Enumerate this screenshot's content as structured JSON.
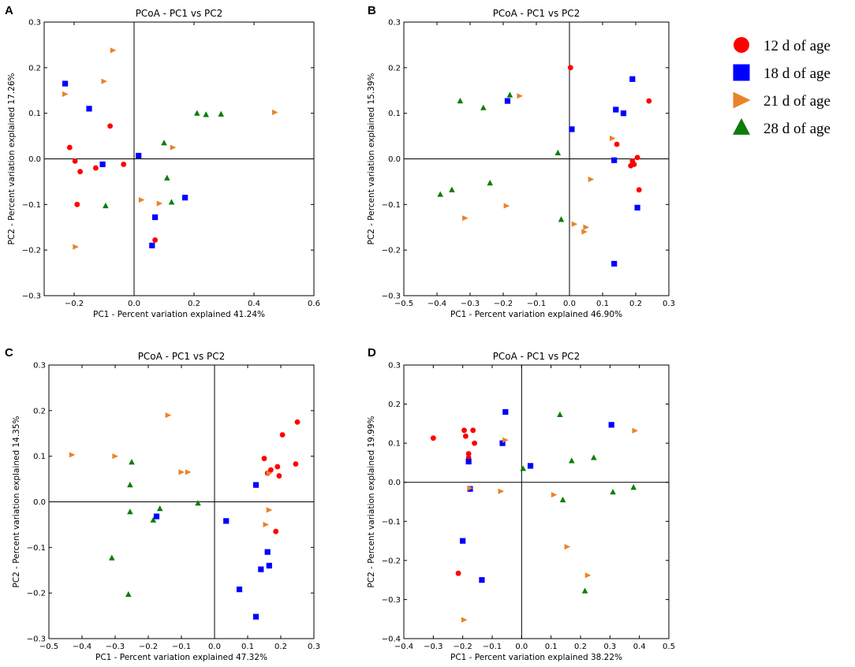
{
  "colors": {
    "group_12": "#ff0000",
    "group_18": "#0000ff",
    "group_21": "#e8832a",
    "group_28": "#0b7d0b",
    "axis": "#000000"
  },
  "legend": {
    "items": [
      {
        "label": "12 d of age",
        "shape": "circle",
        "color_key": "group_12"
      },
      {
        "label": "18 d of age",
        "shape": "square",
        "color_key": "group_18"
      },
      {
        "label": "21 d of age",
        "shape": "triangle-right",
        "color_key": "group_21"
      },
      {
        "label": "28 d of age",
        "shape": "triangle-up",
        "color_key": "group_28"
      }
    ]
  },
  "chart_data": [
    {
      "panel": "A",
      "type": "scatter",
      "title": "PCoA - PC1 vs PC2",
      "xlabel": "PC1 - Percent variation explained 41.24%",
      "ylabel": "PC2 - Percent variation explained 17.26%",
      "xlim": [
        -0.3,
        0.6
      ],
      "ylim": [
        -0.3,
        0.3
      ],
      "xticks": [
        -0.2,
        0.0,
        0.2,
        0.4,
        0.6
      ],
      "yticks": [
        -0.3,
        -0.2,
        -0.1,
        0.0,
        0.1,
        0.2,
        0.3
      ],
      "xtick_labels": [
        "−0.2",
        "0.0",
        "0.2",
        "0.4",
        "0.6"
      ],
      "ytick_labels": [
        "−0.3",
        "−0.2",
        "−0.1",
        "0.0",
        "0.1",
        "0.2",
        "0.3"
      ],
      "series": [
        {
          "name": "12 d of age",
          "points": [
            [
              -0.215,
              0.025
            ],
            [
              -0.197,
              -0.005
            ],
            [
              -0.18,
              -0.028
            ],
            [
              -0.128,
              -0.02
            ],
            [
              -0.08,
              0.072
            ],
            [
              -0.035,
              -0.012
            ],
            [
              -0.19,
              -0.1
            ],
            [
              0.07,
              -0.178
            ]
          ]
        },
        {
          "name": "18 d of age",
          "points": [
            [
              -0.23,
              0.165
            ],
            [
              -0.15,
              0.11
            ],
            [
              -0.105,
              -0.012
            ],
            [
              0.015,
              0.007
            ],
            [
              0.07,
              -0.128
            ],
            [
              0.06,
              -0.19
            ],
            [
              0.17,
              -0.085
            ]
          ]
        },
        {
          "name": "21 d of age",
          "points": [
            [
              -0.07,
              0.238
            ],
            [
              -0.1,
              0.17
            ],
            [
              -0.23,
              0.142
            ],
            [
              0.47,
              0.102
            ],
            [
              0.13,
              0.025
            ],
            [
              0.025,
              -0.09
            ],
            [
              0.085,
              -0.098
            ],
            [
              -0.195,
              -0.193
            ]
          ]
        },
        {
          "name": "28 d of age",
          "points": [
            [
              -0.095,
              -0.103
            ],
            [
              0.21,
              0.1
            ],
            [
              0.24,
              0.097
            ],
            [
              0.29,
              0.098
            ],
            [
              0.1,
              0.035
            ],
            [
              0.11,
              -0.042
            ],
            [
              0.125,
              -0.095
            ]
          ]
        }
      ]
    },
    {
      "panel": "B",
      "type": "scatter",
      "title": "PCoA - PC1 vs PC2",
      "xlabel": "PC1 - Percent variation explained 46.90%",
      "ylabel": "PC2 - Percent variation explained 15.39%",
      "xlim": [
        -0.5,
        0.3
      ],
      "ylim": [
        -0.3,
        0.3
      ],
      "xticks": [
        -0.5,
        -0.4,
        -0.3,
        -0.2,
        -0.1,
        0.0,
        0.1,
        0.2,
        0.3
      ],
      "yticks": [
        -0.3,
        -0.2,
        -0.1,
        0.0,
        0.1,
        0.2,
        0.3
      ],
      "xtick_labels": [
        "−0.5",
        "−0.4",
        "−0.3",
        "−0.2",
        "−0.1",
        "0.0",
        "0.1",
        "0.2",
        "0.3"
      ],
      "ytick_labels": [
        "−0.3",
        "−0.2",
        "−0.1",
        "0.0",
        "0.1",
        "0.2",
        "0.3"
      ],
      "series": [
        {
          "name": "12 d of age",
          "points": [
            [
              0.003,
              0.2
            ],
            [
              0.24,
              0.127
            ],
            [
              0.143,
              0.032
            ],
            [
              0.205,
              0.003
            ],
            [
              0.19,
              -0.005
            ],
            [
              0.185,
              -0.015
            ],
            [
              0.195,
              -0.012
            ],
            [
              0.21,
              -0.068
            ]
          ]
        },
        {
          "name": "18 d of age",
          "points": [
            [
              -0.187,
              0.127
            ],
            [
              0.007,
              0.065
            ],
            [
              0.19,
              0.175
            ],
            [
              0.14,
              0.108
            ],
            [
              0.163,
              0.1
            ],
            [
              0.135,
              -0.003
            ],
            [
              0.205,
              -0.107
            ],
            [
              0.135,
              -0.23
            ]
          ]
        },
        {
          "name": "21 d of age",
          "points": [
            [
              -0.15,
              0.138
            ],
            [
              0.13,
              0.045
            ],
            [
              0.065,
              -0.045
            ],
            [
              -0.315,
              -0.13
            ],
            [
              -0.19,
              -0.103
            ],
            [
              0.015,
              -0.143
            ],
            [
              0.05,
              -0.15
            ],
            [
              0.045,
              -0.16
            ]
          ]
        },
        {
          "name": "28 d of age",
          "points": [
            [
              -0.33,
              0.127
            ],
            [
              -0.26,
              0.112
            ],
            [
              -0.18,
              0.14
            ],
            [
              -0.035,
              0.013
            ],
            [
              -0.39,
              -0.078
            ],
            [
              -0.355,
              -0.068
            ],
            [
              -0.24,
              -0.053
            ],
            [
              -0.025,
              -0.133
            ]
          ]
        }
      ]
    },
    {
      "panel": "C",
      "type": "scatter",
      "title": "PCoA - PC1 vs PC2",
      "xlabel": "PC1 - Percent variation explained 47.32%",
      "ylabel": "PC2 - Percent variation explained 14.35%",
      "xlim": [
        -0.5,
        0.3
      ],
      "ylim": [
        -0.3,
        0.3
      ],
      "xticks": [
        -0.5,
        -0.4,
        -0.3,
        -0.2,
        -0.1,
        0.0,
        0.1,
        0.2,
        0.3
      ],
      "yticks": [
        -0.3,
        -0.2,
        -0.1,
        0.0,
        0.1,
        0.2,
        0.3
      ],
      "xtick_labels": [
        "−0.5",
        "−0.4",
        "−0.3",
        "−0.2",
        "−0.1",
        "0.0",
        "0.1",
        "0.2",
        "0.3"
      ],
      "ytick_labels": [
        "−0.3",
        "−0.2",
        "−0.1",
        "0.0",
        "0.1",
        "0.2",
        "0.3"
      ],
      "series": [
        {
          "name": "12 d of age",
          "points": [
            [
              0.25,
              0.175
            ],
            [
              0.205,
              0.147
            ],
            [
              0.15,
              0.095
            ],
            [
              0.17,
              0.07
            ],
            [
              0.19,
              0.077
            ],
            [
              0.245,
              0.083
            ],
            [
              0.16,
              0.063
            ],
            [
              0.195,
              0.057
            ],
            [
              0.185,
              -0.065
            ]
          ]
        },
        {
          "name": "18 d of age",
          "points": [
            [
              0.125,
              0.037
            ],
            [
              -0.175,
              -0.032
            ],
            [
              0.035,
              -0.042
            ],
            [
              0.16,
              -0.11
            ],
            [
              0.165,
              -0.14
            ],
            [
              0.14,
              -0.148
            ],
            [
              0.075,
              -0.192
            ],
            [
              0.125,
              -0.252
            ]
          ]
        },
        {
          "name": "21 d of age",
          "points": [
            [
              -0.14,
              0.19
            ],
            [
              -0.43,
              0.103
            ],
            [
              -0.3,
              0.1
            ],
            [
              -0.1,
              0.065
            ],
            [
              -0.08,
              0.065
            ],
            [
              0.165,
              0.063
            ],
            [
              0.165,
              -0.018
            ],
            [
              0.155,
              -0.05
            ]
          ]
        },
        {
          "name": "28 d of age",
          "points": [
            [
              -0.25,
              0.087
            ],
            [
              -0.255,
              0.037
            ],
            [
              -0.255,
              -0.022
            ],
            [
              -0.165,
              -0.015
            ],
            [
              -0.185,
              -0.04
            ],
            [
              -0.05,
              -0.003
            ],
            [
              -0.31,
              -0.123
            ],
            [
              -0.26,
              -0.203
            ]
          ]
        }
      ]
    },
    {
      "panel": "D",
      "type": "scatter",
      "title": "PCoA - PC1 vs PC2",
      "xlabel": "PC1 - Percent variation explained 38.22%",
      "ylabel": "PC2 - Percent variation explained 19.99%",
      "xlim": [
        -0.4,
        0.5
      ],
      "ylim": [
        -0.4,
        0.3
      ],
      "xticks": [
        -0.4,
        -0.3,
        -0.2,
        -0.1,
        0.0,
        0.1,
        0.2,
        0.3,
        0.4,
        0.5
      ],
      "yticks": [
        -0.4,
        -0.3,
        -0.2,
        -0.1,
        0.0,
        0.1,
        0.2,
        0.3
      ],
      "xtick_labels": [
        "−0.4",
        "−0.3",
        "−0.2",
        "−0.1",
        "0.0",
        "0.1",
        "0.2",
        "0.3",
        "0.4",
        "0.5"
      ],
      "ytick_labels": [
        "−0.4",
        "−0.3",
        "−0.2",
        "−0.1",
        "0.0",
        "0.1",
        "0.2",
        "0.3"
      ],
      "series": [
        {
          "name": "12 d of age",
          "points": [
            [
              -0.3,
              0.113
            ],
            [
              -0.195,
              0.133
            ],
            [
              -0.165,
              0.133
            ],
            [
              -0.19,
              0.118
            ],
            [
              -0.16,
              0.1
            ],
            [
              -0.18,
              0.073
            ],
            [
              -0.18,
              0.063
            ],
            [
              -0.215,
              -0.233
            ]
          ]
        },
        {
          "name": "18 d of age",
          "points": [
            [
              -0.055,
              0.18
            ],
            [
              0.305,
              0.147
            ],
            [
              -0.065,
              0.1
            ],
            [
              0.03,
              0.042
            ],
            [
              -0.18,
              0.053
            ],
            [
              -0.175,
              -0.017
            ],
            [
              -0.2,
              -0.15
            ],
            [
              -0.135,
              -0.25
            ]
          ]
        },
        {
          "name": "21 d of age",
          "points": [
            [
              0.385,
              0.132
            ],
            [
              -0.055,
              0.108
            ],
            [
              -0.175,
              -0.015
            ],
            [
              -0.07,
              -0.023
            ],
            [
              0.11,
              -0.032
            ],
            [
              0.155,
              -0.165
            ],
            [
              0.225,
              -0.238
            ],
            [
              -0.195,
              -0.352
            ]
          ]
        },
        {
          "name": "28 d of age",
          "points": [
            [
              0.13,
              0.173
            ],
            [
              0.245,
              0.063
            ],
            [
              0.17,
              0.055
            ],
            [
              0.005,
              0.035
            ],
            [
              0.38,
              -0.013
            ],
            [
              0.31,
              -0.025
            ],
            [
              0.14,
              -0.045
            ],
            [
              0.215,
              -0.278
            ]
          ]
        }
      ]
    }
  ]
}
